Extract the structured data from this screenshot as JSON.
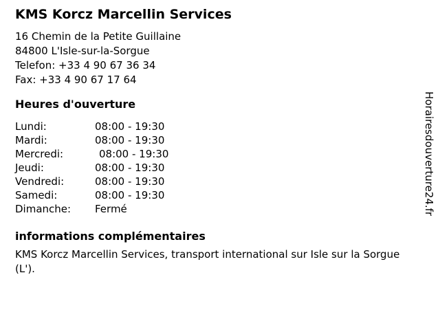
{
  "page": {
    "title": "KMS Korcz Marcellin Services",
    "address": {
      "street": "16 Chemin de la Petite Guillaine",
      "city": "84800 L'Isle-sur-la-Sorgue",
      "phone": "Telefon: +33 4 90 67 36 34",
      "fax": "Fax: +33 4 90 67 17 64"
    },
    "hours": {
      "heading": "Heures d'ouverture",
      "rows": [
        {
          "day": "Lundi:",
          "time": "08:00 - 19:30"
        },
        {
          "day": "Mardi:",
          "time": "08:00 - 19:30"
        },
        {
          "day": "Mercredi:",
          "time": "08:00 - 19:30"
        },
        {
          "day": "Jeudi:",
          "time": "08:00 - 19:30"
        },
        {
          "day": "Vendredi:",
          "time": "08:00 - 19:30"
        },
        {
          "day": "Samedi:",
          "time": "08:00 - 19:30"
        },
        {
          "day": "Dimanche:",
          "time": "Fermé"
        }
      ]
    },
    "info": {
      "heading": "informations complémentaires",
      "text": "KMS Korcz Marcellin Services, transport international sur Isle sur la Sorgue (L')."
    },
    "watermark": "Horairesdouverture24.fr",
    "colors": {
      "text": "#000000",
      "background": "#ffffff"
    }
  }
}
